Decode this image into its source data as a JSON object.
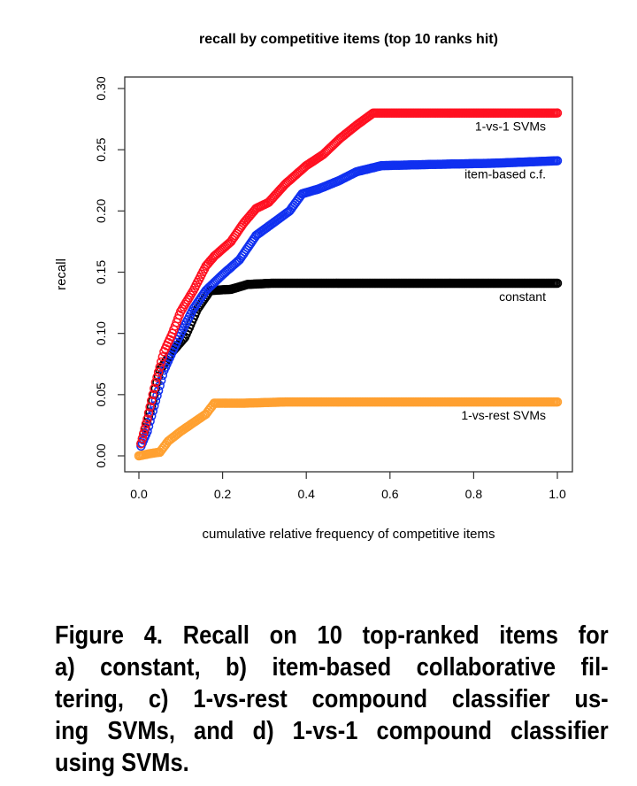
{
  "chart_data": {
    "type": "scatter",
    "title": "recall by competitive items (top 10 ranks hit)",
    "xlabel": "cumulative relative frequency of competitive items",
    "ylabel": "recall",
    "xlim": [
      0.0,
      1.0
    ],
    "ylim": [
      0.0,
      0.3
    ],
    "x_ticks": [
      "0.0",
      "0.2",
      "0.4",
      "0.6",
      "0.8",
      "1.0"
    ],
    "y_ticks": [
      "0.00",
      "0.05",
      "0.10",
      "0.15",
      "0.20",
      "0.25",
      "0.30"
    ],
    "grid": false,
    "marker": "open-circle",
    "series": [
      {
        "name": "1-vs-1 SVMs",
        "color": "#ff1020",
        "points": [
          [
            0.005,
            0.01
          ],
          [
            0.02,
            0.03
          ],
          [
            0.04,
            0.06
          ],
          [
            0.06,
            0.085
          ],
          [
            0.08,
            0.1
          ],
          [
            0.1,
            0.118
          ],
          [
            0.13,
            0.135
          ],
          [
            0.16,
            0.155
          ],
          [
            0.18,
            0.163
          ],
          [
            0.22,
            0.175
          ],
          [
            0.25,
            0.19
          ],
          [
            0.28,
            0.202
          ],
          [
            0.31,
            0.207
          ],
          [
            0.35,
            0.222
          ],
          [
            0.4,
            0.237
          ],
          [
            0.44,
            0.246
          ],
          [
            0.48,
            0.259
          ],
          [
            0.52,
            0.27
          ],
          [
            0.56,
            0.28
          ],
          [
            1.0,
            0.28
          ]
        ]
      },
      {
        "name": "item-based c.f.",
        "color": "#1030f0",
        "points": [
          [
            0.005,
            0.008
          ],
          [
            0.02,
            0.02
          ],
          [
            0.04,
            0.045
          ],
          [
            0.06,
            0.07
          ],
          [
            0.08,
            0.085
          ],
          [
            0.1,
            0.1
          ],
          [
            0.13,
            0.12
          ],
          [
            0.16,
            0.135
          ],
          [
            0.2,
            0.148
          ],
          [
            0.24,
            0.16
          ],
          [
            0.28,
            0.18
          ],
          [
            0.32,
            0.19
          ],
          [
            0.36,
            0.2
          ],
          [
            0.39,
            0.214
          ],
          [
            0.43,
            0.218
          ],
          [
            0.48,
            0.225
          ],
          [
            0.52,
            0.232
          ],
          [
            0.58,
            0.237
          ],
          [
            0.7,
            0.238
          ],
          [
            0.85,
            0.239
          ],
          [
            1.0,
            0.241
          ]
        ]
      },
      {
        "name": "constant",
        "color": "#000000",
        "points": [
          [
            0.005,
            0.01
          ],
          [
            0.03,
            0.04
          ],
          [
            0.05,
            0.07
          ],
          [
            0.08,
            0.085
          ],
          [
            0.11,
            0.097
          ],
          [
            0.14,
            0.12
          ],
          [
            0.16,
            0.13
          ],
          [
            0.17,
            0.135
          ],
          [
            0.22,
            0.136
          ],
          [
            0.26,
            0.14
          ],
          [
            0.32,
            0.141
          ],
          [
            1.0,
            0.141
          ]
        ]
      },
      {
        "name": "1-vs-rest SVMs",
        "color": "#ffa030",
        "points": [
          [
            0.0,
            0.0
          ],
          [
            0.03,
            0.002
          ],
          [
            0.05,
            0.003
          ],
          [
            0.07,
            0.012
          ],
          [
            0.1,
            0.02
          ],
          [
            0.13,
            0.027
          ],
          [
            0.16,
            0.034
          ],
          [
            0.18,
            0.043
          ],
          [
            0.25,
            0.043
          ],
          [
            0.35,
            0.044
          ],
          [
            1.0,
            0.044
          ]
        ]
      }
    ]
  },
  "caption": {
    "lines": [
      "Figure 4. Recall on 10 top-ranked items for",
      "a) constant, b) item-based collaborative fil-",
      "tering, c) 1-vs-rest compound classifier us-",
      "ing SVMs, and d) 1-vs-1 compound classifier",
      "using SVMs."
    ]
  }
}
